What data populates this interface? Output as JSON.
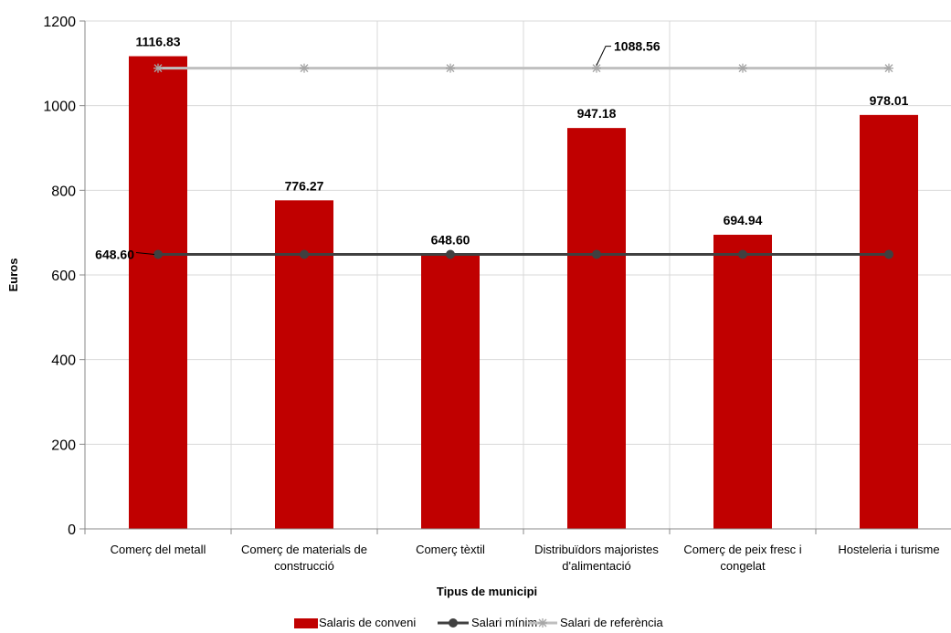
{
  "chart_data": {
    "type": "bar",
    "categories": [
      [
        "Comerç del metall"
      ],
      [
        "Comerç de materials de",
        "construcció"
      ],
      [
        "Comerç tèxtil"
      ],
      [
        "Distribuïdors majoristes",
        "d'alimentació"
      ],
      [
        "Comerç de peix fresc i",
        "congelat"
      ],
      [
        "Hosteleria i turisme"
      ]
    ],
    "series": [
      {
        "name": "Salaris de conveni",
        "type": "bar",
        "color": "#C00000",
        "values": [
          1116.83,
          776.27,
          648.6,
          947.18,
          694.94,
          978.01
        ],
        "labels": [
          "1116.83",
          "776.27",
          "648.60",
          "947.18",
          "694.94",
          "978.01"
        ]
      },
      {
        "name": "Salari mínim",
        "type": "line",
        "color": "#404040",
        "marker": "circle",
        "values": [
          648.6,
          648.6,
          648.6,
          648.6,
          648.6,
          648.6
        ],
        "label": "648.60"
      },
      {
        "name": "Salari de referència",
        "type": "line",
        "color": "#BFBFBF",
        "marker": "star",
        "values": [
          1088.56,
          1088.56,
          1088.56,
          1088.56,
          1088.56,
          1088.56
        ],
        "label": "1088.56"
      }
    ],
    "xlabel": "Tipus de municipi",
    "ylabel": "Euros",
    "ylim": [
      0,
      1200
    ],
    "yticks": [
      0,
      200,
      400,
      600,
      800,
      1000,
      1200
    ],
    "grid": true,
    "legend": "bottom"
  }
}
